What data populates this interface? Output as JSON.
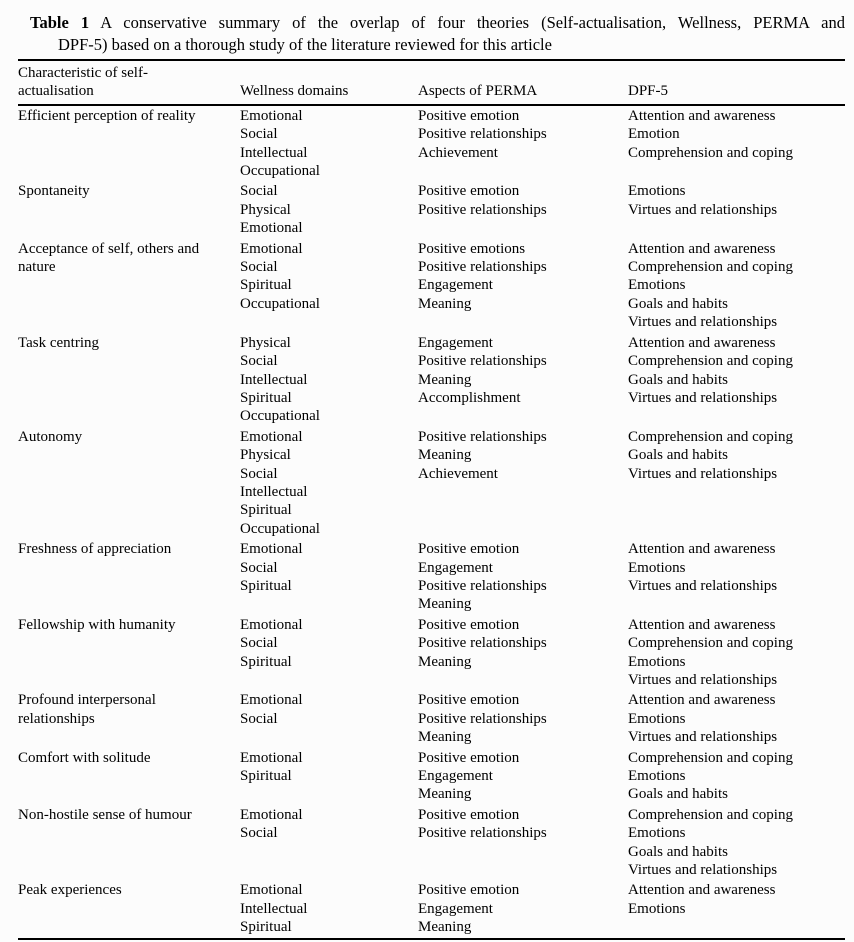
{
  "title": {
    "bold": "Table 1",
    "line1": "A conservative summary of the overlap of four theories (Self-actualisation, Wellness, PERMA and",
    "line2": "DPF-5) based on a thorough study of the literature reviewed for this article"
  },
  "colors": {
    "text": "#000000",
    "background": "#fcfcfc",
    "rule": "#000000"
  },
  "table": {
    "headers": {
      "characteristic_line1": "Characteristic of self-",
      "characteristic_line2": "actualisation",
      "wellness": "Wellness domains",
      "perma": "Aspects of PERMA",
      "dpf5": "DPF-5"
    },
    "rows": [
      {
        "characteristic": "Efficient perception of reality",
        "wellness": [
          "Emotional",
          "Social",
          "Intellectual",
          "Occupational"
        ],
        "perma": [
          "Positive emotion",
          "Positive relationships",
          "Achievement"
        ],
        "dpf5": [
          "Attention and awareness",
          "Emotion",
          "Comprehension and coping"
        ]
      },
      {
        "characteristic": "Spontaneity",
        "wellness": [
          "Social",
          "Physical",
          "Emotional"
        ],
        "perma": [
          "Positive emotion",
          "Positive relationships"
        ],
        "dpf5": [
          "Emotions",
          "Virtues and relationships"
        ]
      },
      {
        "characteristic": "Acceptance of self, others and nature",
        "wellness": [
          "Emotional",
          "Social",
          "Spiritual",
          "Occupational"
        ],
        "perma": [
          "Positive emotions",
          "Positive relationships",
          "Engagement",
          "Meaning"
        ],
        "dpf5": [
          "Attention and awareness",
          "Comprehension and coping",
          "Emotions",
          "Goals and habits",
          "Virtues and relationships"
        ]
      },
      {
        "characteristic": "Task centring",
        "wellness": [
          "Physical",
          "Social",
          "Intellectual",
          "Spiritual",
          "Occupational"
        ],
        "perma": [
          "Engagement",
          "Positive relationships",
          "Meaning",
          "Accomplishment"
        ],
        "dpf5": [
          "Attention and awareness",
          "Comprehension and coping",
          "Goals and habits",
          "Virtues and relationships"
        ]
      },
      {
        "characteristic": "Autonomy",
        "wellness": [
          "Emotional",
          "Physical",
          "Social",
          "Intellectual",
          "Spiritual",
          "Occupational"
        ],
        "perma": [
          "Positive relationships",
          "Meaning",
          "Achievement"
        ],
        "dpf5": [
          "Comprehension and coping",
          "Goals and habits",
          "Virtues and relationships"
        ]
      },
      {
        "characteristic": "Freshness of appreciation",
        "wellness": [
          "Emotional",
          "Social",
          "Spiritual"
        ],
        "perma": [
          "Positive emotion",
          "Engagement",
          "Positive relationships",
          "Meaning"
        ],
        "dpf5": [
          "Attention and awareness",
          "Emotions",
          "Virtues and relationships"
        ]
      },
      {
        "characteristic": "Fellowship with humanity",
        "wellness": [
          "Emotional",
          "Social",
          "Spiritual"
        ],
        "perma": [
          "Positive emotion",
          "Positive relationships",
          "Meaning"
        ],
        "dpf5": [
          "Attention and awareness",
          "Comprehension and coping",
          "Emotions",
          "Virtues and relationships"
        ]
      },
      {
        "characteristic": "Profound interpersonal relationships",
        "wellness": [
          "Emotional",
          "Social"
        ],
        "perma": [
          "Positive emotion",
          "Positive relationships",
          "Meaning"
        ],
        "dpf5": [
          "Attention and awareness",
          "Emotions",
          "Virtues and relationships"
        ]
      },
      {
        "characteristic": "Comfort with solitude",
        "wellness": [
          "Emotional",
          "Spiritual"
        ],
        "perma": [
          "Positive emotion",
          "Engagement",
          "Meaning"
        ],
        "dpf5": [
          "Comprehension and coping",
          "Emotions",
          "Goals and habits"
        ]
      },
      {
        "characteristic": "Non-hostile sense of humour",
        "wellness": [
          "Emotional",
          "Social"
        ],
        "perma": [
          "Positive emotion",
          "Positive relationships"
        ],
        "dpf5": [
          "Comprehension and coping",
          "Emotions",
          "Goals and habits",
          "Virtues and relationships"
        ]
      },
      {
        "characteristic": "Peak experiences",
        "wellness": [
          "Emotional",
          "Intellectual",
          "Spiritual"
        ],
        "perma": [
          "Positive emotion",
          "Engagement",
          "Meaning"
        ],
        "dpf5": [
          "Attention and awareness",
          "Emotions"
        ]
      }
    ]
  }
}
